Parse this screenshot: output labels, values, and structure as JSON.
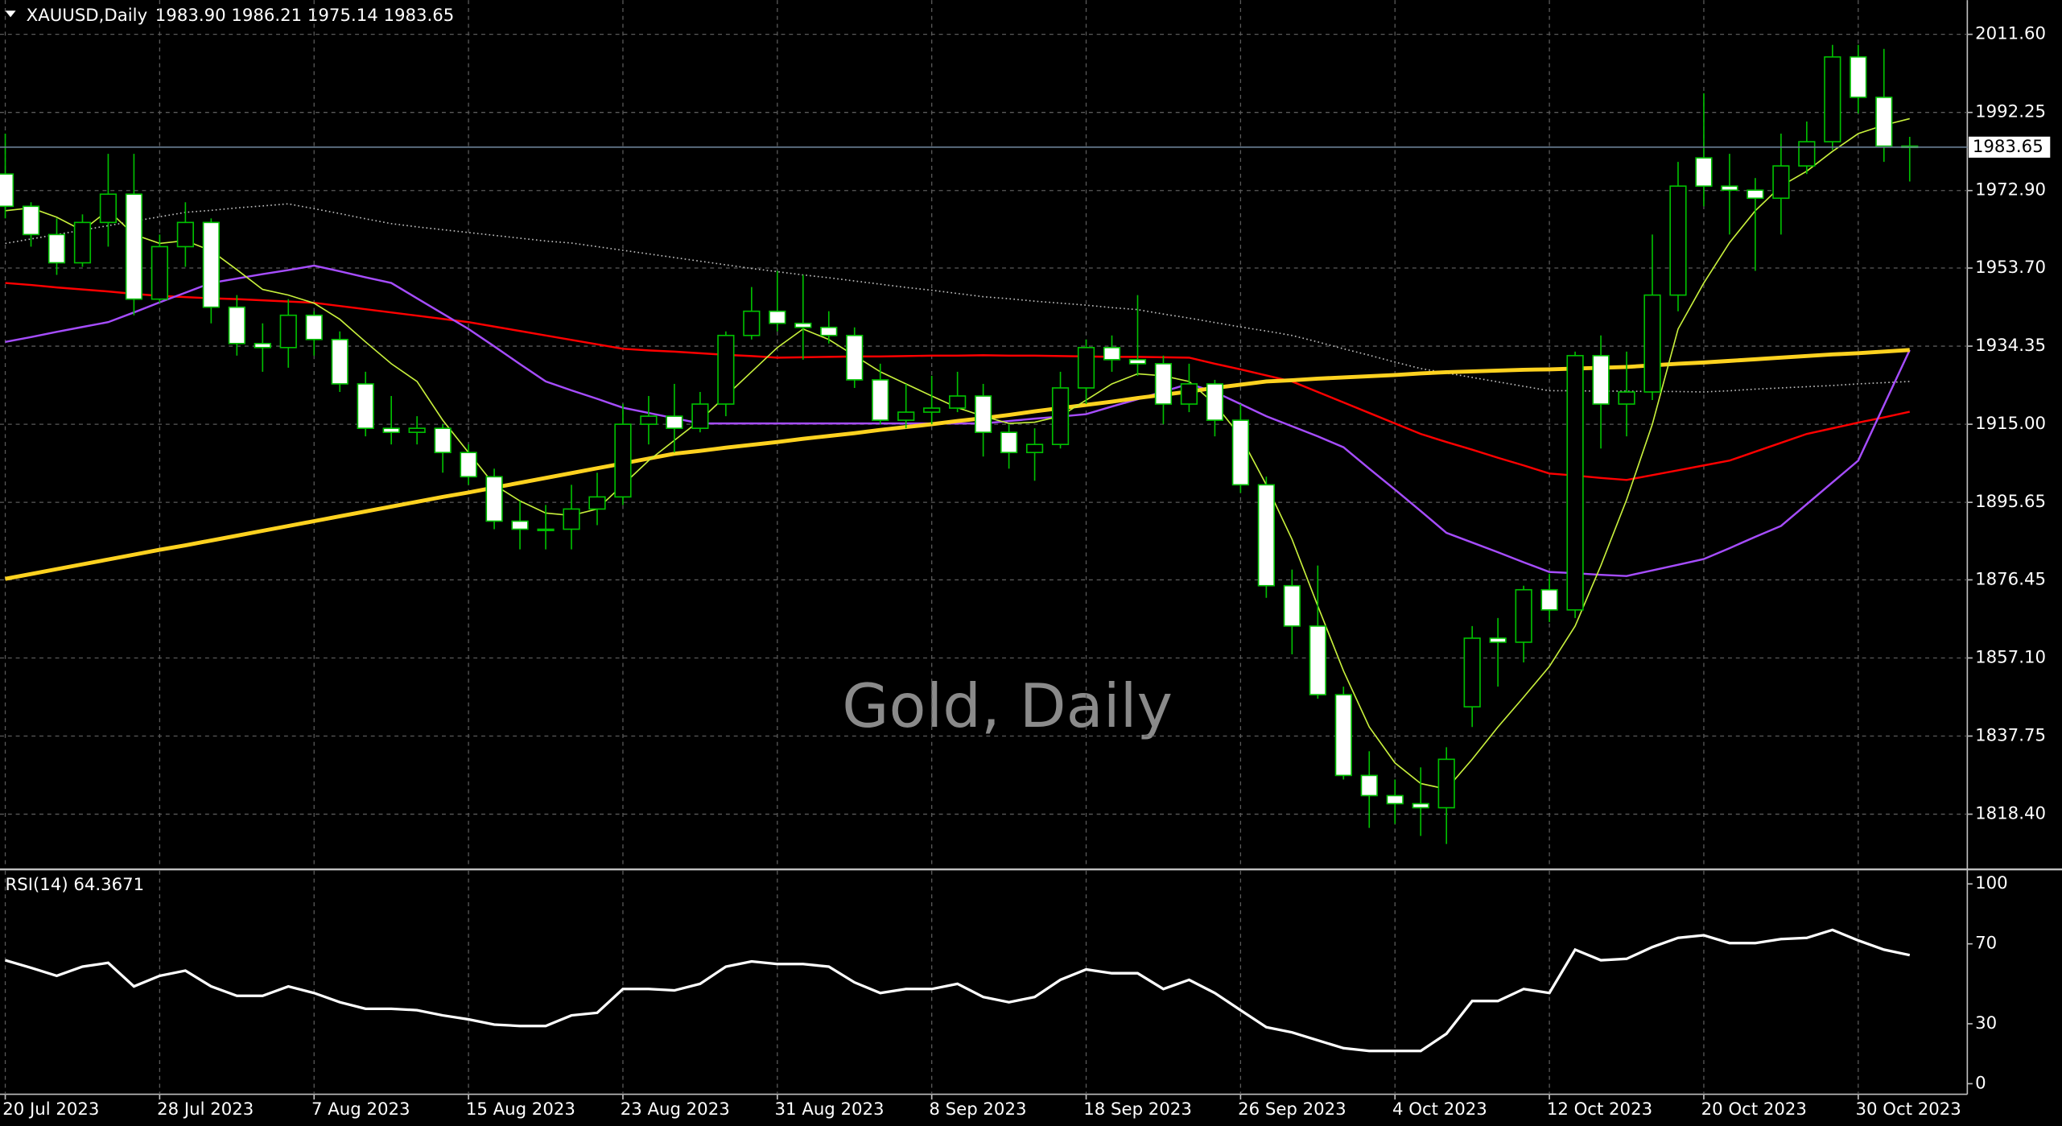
{
  "chart_data": [
    {
      "type": "candlestick",
      "title": "XAUUSD,Daily",
      "ohlc_header": "1983.90 1986.21 1975.14 1983.65",
      "watermark": "Gold, Daily",
      "categories": [
        "20 Jul 2023",
        null,
        null,
        null,
        null,
        null,
        "28 Jul 2023",
        null,
        null,
        null,
        null,
        null,
        "7 Aug 2023",
        null,
        null,
        null,
        null,
        null,
        "15 Aug 2023",
        null,
        null,
        null,
        null,
        null,
        "23 Aug 2023",
        null,
        null,
        null,
        null,
        null,
        "31 Aug 2023",
        null,
        null,
        null,
        null,
        null,
        "8 Sep 2023",
        null,
        null,
        null,
        null,
        null,
        "18 Sep 2023",
        null,
        null,
        null,
        null,
        null,
        "26 Sep 2023",
        null,
        null,
        null,
        null,
        null,
        "4 Oct 2023",
        null,
        null,
        null,
        null,
        null,
        "12 Oct 2023",
        null,
        null,
        null,
        null,
        null,
        "20 Oct 2023",
        null,
        null,
        null,
        null,
        null,
        "30 Oct 2023",
        null,
        null
      ],
      "open": [
        1977,
        1969,
        1962,
        1955,
        1965,
        1972,
        1946,
        1959,
        1965,
        1944,
        1935,
        1934,
        1942,
        1936,
        1925,
        1914,
        1913,
        1914,
        1908,
        1902,
        1891,
        1889,
        1889,
        1894,
        1897,
        1915,
        1917,
        1914,
        1920,
        1937,
        1943,
        1940,
        1939,
        1937,
        1926,
        1916,
        1918,
        1919,
        1922,
        1913,
        1908,
        1910,
        1924,
        1934,
        1931,
        1930,
        1920,
        1925,
        1916,
        1900,
        1875,
        1865,
        1848,
        1828,
        1823,
        1821,
        1820,
        1845,
        1862,
        1861,
        1874,
        1869,
        1932,
        1920,
        1923,
        1947,
        1981,
        1974,
        1973,
        1971,
        1979,
        1985,
        2006,
        1996,
        1983.9
      ],
      "high": [
        1987,
        1970,
        1966,
        1967,
        1982,
        1982,
        1962,
        1970,
        1966,
        1947,
        1940,
        1946,
        1943,
        1938,
        1928,
        1922,
        1917,
        1915,
        1910,
        1904,
        1896,
        1895,
        1900,
        1903,
        1920,
        1922,
        1925,
        1923,
        1938,
        1949,
        1953,
        1952,
        1943,
        1939,
        1930,
        1925,
        1927,
        1928,
        1925,
        1915,
        1914,
        1928,
        1936,
        1937,
        1947,
        1932,
        1930,
        1926,
        1920,
        1902,
        1879,
        1880,
        1850,
        1834,
        1827,
        1830,
        1835,
        1865,
        1867,
        1875,
        1878,
        1933,
        1937,
        1933,
        1962,
        1980,
        1997,
        1982,
        1976,
        1987,
        1990,
        2009,
        2009,
        2008,
        1986.21
      ],
      "low": [
        1966,
        1959,
        1952,
        1954,
        1959,
        1942,
        1945,
        1954,
        1940,
        1932,
        1928,
        1929,
        1932,
        1923,
        1912,
        1910,
        1910,
        1903,
        1900,
        1889,
        1884,
        1884,
        1884,
        1890,
        1895,
        1910,
        1908,
        1913,
        1917,
        1936,
        1938,
        1931,
        1935,
        1924,
        1915,
        1914,
        1915,
        1918,
        1907,
        1904,
        1901,
        1909,
        1920,
        1928,
        1927,
        1915,
        1918,
        1912,
        1898,
        1872,
        1858,
        1847,
        1827,
        1815,
        1816,
        1813,
        1811,
        1840,
        1850,
        1856,
        1866,
        1867,
        1909,
        1912,
        1921,
        1943,
        1969,
        1962,
        1953,
        1962,
        1977,
        1983,
        1992,
        1980,
        1975.14
      ],
      "close": [
        1969,
        1962,
        1955,
        1965,
        1972,
        1946,
        1959,
        1965,
        1944,
        1935,
        1934,
        1942,
        1936,
        1925,
        1914,
        1913,
        1914,
        1908,
        1902,
        1891,
        1889,
        1889,
        1894,
        1897,
        1915,
        1917,
        1914,
        1920,
        1937,
        1943,
        1940,
        1939,
        1937,
        1926,
        1916,
        1918,
        1919,
        1922,
        1913,
        1908,
        1910,
        1924,
        1934,
        1931,
        1930,
        1920,
        1925,
        1916,
        1900,
        1875,
        1865,
        1848,
        1828,
        1823,
        1821,
        1820,
        1832,
        1862,
        1861,
        1874,
        1869,
        1932,
        1920,
        1923,
        1947,
        1974,
        1974,
        1973,
        1971,
        1979,
        1985,
        2006,
        1996,
        1983.9,
        1983.65
      ],
      "bull_color": "#000000",
      "bear_color": "#ffffff",
      "wick_color": "#00c000",
      "series": [
        {
          "color": "#c0c0c0",
          "style": "dotted",
          "width": 1,
          "values": [
            1959.8,
            1960.9,
            1962.0,
            1963.1,
            1964.2,
            1965.3,
            1966.4,
            1967.5,
            1968.0,
            1968.6,
            1969.1,
            1969.6,
            1968.4,
            1967.2,
            1965.9,
            1964.7,
            1963.9,
            1963.2,
            1962.5,
            1961.8,
            1961.1,
            1960.4,
            1959.9,
            1959.0,
            1958.1,
            1957.2,
            1956.3,
            1955.4,
            1954.5,
            1953.6,
            1952.8,
            1952.0,
            1951.3,
            1950.5,
            1949.7,
            1948.9,
            1948.2,
            1947.4,
            1946.6,
            1946.1,
            1945.5,
            1945.0,
            1944.5,
            1943.9,
            1943.4,
            1942.3,
            1941.3,
            1940.2,
            1939.1,
            1938.1,
            1937.0,
            1935.4,
            1933.7,
            1932.1,
            1930.4,
            1928.8,
            1927.7,
            1926.6,
            1925.5,
            1924.4,
            1923.3,
            1923.3,
            1923.2,
            1923.2,
            1923.1,
            1923.1,
            1923.0,
            1923.3,
            1923.7,
            1924.0,
            1924.3,
            1924.6,
            1925.0,
            1925.3,
            1925.6
          ]
        },
        {
          "color": "#ff0000",
          "style": "solid",
          "width": 1.5,
          "values": [
            1950.0,
            1949.5,
            1948.9,
            1948.4,
            1947.9,
            1947.3,
            1946.8,
            1946.5,
            1946.2,
            1946.0,
            1945.7,
            1945.4,
            1945.1,
            1944.3,
            1943.5,
            1942.7,
            1941.9,
            1941.1,
            1940.3,
            1939.2,
            1938.1,
            1937.0,
            1935.9,
            1934.8,
            1933.7,
            1933.3,
            1933.0,
            1932.6,
            1932.2,
            1931.9,
            1931.5,
            1931.6,
            1931.7,
            1931.8,
            1931.8,
            1931.9,
            1932.0,
            1932.0,
            1932.1,
            1932.0,
            1932.0,
            1931.9,
            1931.8,
            1931.7,
            1931.7,
            1931.6,
            1931.5,
            1930.0,
            1928.6,
            1927.1,
            1925.6,
            1923.0,
            1920.4,
            1917.8,
            1915.2,
            1912.6,
            1910.6,
            1908.7,
            1906.7,
            1904.8,
            1902.8,
            1902.3,
            1901.7,
            1901.2,
            1902.4,
            1903.6,
            1904.8,
            1906.0,
            1908.2,
            1910.4,
            1912.6,
            1914.0,
            1915.4,
            1916.7,
            1918.1
          ]
        },
        {
          "color": "#a64dff",
          "style": "solid",
          "width": 1.5,
          "values": [
            1935.4,
            1936.6,
            1937.9,
            1939.1,
            1940.3,
            1942.7,
            1945.2,
            1947.6,
            1950.0,
            1951.1,
            1952.2,
            1953.2,
            1954.3,
            1952.9,
            1951.4,
            1950.0,
            1946.2,
            1942.4,
            1938.6,
            1934.3,
            1929.9,
            1925.6,
            1923.4,
            1921.3,
            1919.1,
            1917.8,
            1916.5,
            1915.2,
            1915.2,
            1915.2,
            1915.2,
            1915.2,
            1915.2,
            1915.2,
            1915.2,
            1915.2,
            1915.2,
            1915.2,
            1915.2,
            1915.8,
            1916.4,
            1916.9,
            1917.5,
            1919.4,
            1921.2,
            1923.1,
            1925.0,
            1923.0,
            1920.0,
            1917.0,
            1914.5,
            1912.0,
            1909.3,
            1904.0,
            1898.8,
            1893.5,
            1888.1,
            1885.7,
            1883.3,
            1880.8,
            1878.4,
            1878.1,
            1877.7,
            1877.4,
            1878.8,
            1880.2,
            1881.6,
            1884.3,
            1887.1,
            1889.8,
            1895.2,
            1900.6,
            1906.0,
            1919.7,
            1933.4
          ]
        },
        {
          "color": "#ffd21f",
          "style": "solid",
          "width": 3,
          "values": [
            1876.7,
            1877.9,
            1879.1,
            1880.3,
            1881.5,
            1882.7,
            1883.9,
            1885.0,
            1886.2,
            1887.4,
            1888.6,
            1889.8,
            1891.0,
            1892.2,
            1893.4,
            1894.6,
            1895.8,
            1897.0,
            1898.1,
            1899.3,
            1900.5,
            1901.7,
            1902.9,
            1904.1,
            1905.3,
            1906.5,
            1907.7,
            1908.4,
            1909.2,
            1909.9,
            1910.6,
            1911.4,
            1912.1,
            1912.8,
            1913.6,
            1914.3,
            1915.0,
            1915.8,
            1916.5,
            1917.3,
            1918.2,
            1919.0,
            1919.8,
            1920.6,
            1921.5,
            1922.3,
            1923.1,
            1924.0,
            1924.8,
            1925.6,
            1925.9,
            1926.3,
            1926.6,
            1926.9,
            1927.2,
            1927.6,
            1927.9,
            1928.1,
            1928.3,
            1928.5,
            1928.6,
            1928.8,
            1929.0,
            1929.2,
            1929.6,
            1930.0,
            1930.3,
            1930.7,
            1931.1,
            1931.5,
            1931.9,
            1932.3,
            1932.6,
            1933.0,
            1933.4
          ]
        },
        {
          "color": "#c8f03c",
          "style": "solid",
          "width": 1,
          "values": [
            1967.9,
            1968.6,
            1966.3,
            1963.0,
            1968,
            1962,
            1959.8,
            1960.5,
            1958,
            1953.3,
            1948.4,
            1947,
            1945,
            1941,
            1935.4,
            1930,
            1925.6,
            1916,
            1908,
            1900,
            1896,
            1893,
            1892.4,
            1894,
            1900,
            1906,
            1911,
            1916,
            1922,
            1928,
            1934,
            1938.6,
            1936,
            1932,
            1928,
            1925,
            1922,
            1919.1,
            1917,
            1915.2,
            1915.5,
            1917,
            1921,
            1925,
            1927.5,
            1927,
            1925.6,
            1920,
            1912,
            1900,
            1886.5,
            1870,
            1853.9,
            1840,
            1831.1,
            1826,
            1824.6,
            1832,
            1840,
            1847.4,
            1855,
            1865,
            1880,
            1896.3,
            1915,
            1938.6,
            1950,
            1960,
            1967.9,
            1974,
            1977.7,
            1982.6,
            1987,
            1989.1,
            1990.7
          ]
        }
      ],
      "current_price": {
        "value": 1983.65,
        "label": "1983.65"
      },
      "ylim": [
        1805.04,
        2020.07
      ],
      "yticks": [
        {
          "value": 2011.6,
          "label": "2011.60"
        },
        1992.25,
        {
          "value": 1972.9,
          "label": "1972.90"
        },
        {
          "value": 1953.7,
          "label": "1953.70"
        },
        1934.35,
        {
          "value": 1915,
          "label": "1915.00"
        },
        1895.65,
        1876.45,
        {
          "value": 1857.1,
          "label": "1857.10"
        },
        1837.75,
        {
          "value": 1818.4,
          "label": "1818.40"
        }
      ],
      "grid": true
    },
    {
      "type": "line",
      "title": "RSI(14) 64.3671",
      "color": "#ffffff",
      "values": [
        61.8,
        58,
        54,
        58.6,
        60.5,
        48.7,
        54,
        56.6,
        48.7,
        44,
        44,
        48.7,
        45.4,
        40.8,
        37.5,
        37.5,
        36.8,
        34.2,
        32.2,
        29.6,
        28.9,
        28.9,
        34.2,
        35.5,
        47.4,
        47.4,
        46.7,
        50,
        58.6,
        61.2,
        59.9,
        59.9,
        58.6,
        50.7,
        45.4,
        47.4,
        47.4,
        50,
        43.4,
        40.8,
        43.4,
        52,
        57.2,
        55.3,
        55.3,
        47.4,
        52,
        45.4,
        36.8,
        28.3,
        25.7,
        21.7,
        17.8,
        16.4,
        16.4,
        16.4,
        25,
        41.4,
        41.4,
        47.4,
        45.4,
        67.1,
        61.8,
        62.5,
        68.4,
        73,
        74.3,
        70.4,
        70.4,
        72.4,
        73,
        77,
        71.7,
        67.1,
        64.3671
      ],
      "ylim": [
        -5.3,
        106.6
      ],
      "yticks": [
        0,
        30,
        70,
        100
      ],
      "grid": true
    }
  ]
}
